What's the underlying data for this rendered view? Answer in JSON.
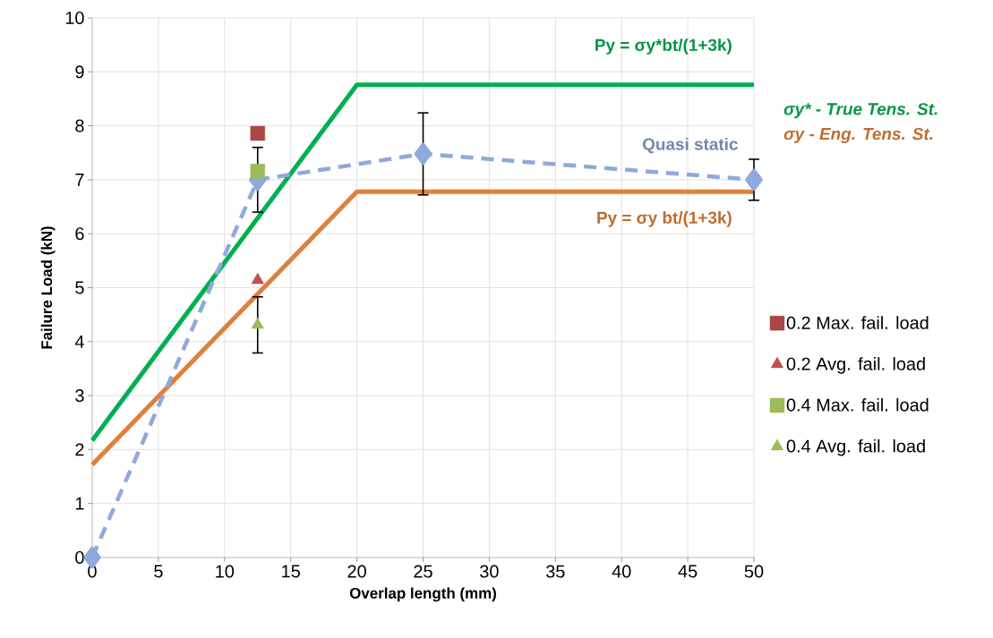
{
  "chart_data": {
    "type": "line",
    "xlabel": "Overlap length (mm)",
    "ylabel": "Failure Load (kN)",
    "xlim": [
      0,
      50
    ],
    "ylim": [
      0,
      10
    ],
    "xticks": [
      0,
      5,
      10,
      15,
      20,
      25,
      30,
      35,
      40,
      45,
      50
    ],
    "yticks": [
      0,
      1,
      2,
      3,
      4,
      5,
      6,
      7,
      8,
      9,
      10
    ],
    "grid": true,
    "legend": "right",
    "series": [
      {
        "color": "#00b050",
        "x": [
          0,
          20,
          50
        ],
        "values": [
          2.17,
          8.76,
          8.76
        ],
        "marker": "none",
        "line_style": "solid"
      },
      {
        "color": "#e0803a",
        "x": [
          0,
          20,
          50
        ],
        "values": [
          1.72,
          6.78,
          6.78
        ],
        "marker": "none",
        "line_style": "solid"
      },
      {
        "name": "Quasi static",
        "color": "#8ea9db",
        "x": [
          0,
          12.5,
          25,
          50
        ],
        "values": [
          0,
          7.0,
          7.48,
          7.0
        ],
        "errors": [
          null,
          0.6,
          0.76,
          0.38
        ],
        "marker": "diamond",
        "line_style": "dashed"
      },
      {
        "type": "scatter",
        "name": "0.2 Max. fail. load",
        "color": "#aa4643",
        "x": [
          12.5
        ],
        "values": [
          7.86
        ],
        "marker": "square"
      },
      {
        "type": "scatter",
        "name": "0.2 Avg. fail. load",
        "color": "#c0504d",
        "x": [
          12.5
        ],
        "values": [
          5.14
        ],
        "marker": "triangle"
      },
      {
        "type": "scatter",
        "name": "0.4 Max. fail. load",
        "color": "#9bbb59",
        "x": [
          12.5
        ],
        "values": [
          7.16
        ],
        "marker": "square"
      },
      {
        "type": "scatter",
        "name": "0.4 Avg. fail. load",
        "color": "#9bbb59",
        "x": [
          12.5
        ],
        "values": [
          4.31
        ],
        "errors": [
          0.52
        ],
        "marker": "triangle"
      }
    ],
    "annotations": [
      "Py = σy*bt/(1+3k)",
      "Py = σy bt/(1+3k)",
      "σy* -  True Tens. St.",
      "σy  -  Eng. Tens. St."
    ]
  }
}
